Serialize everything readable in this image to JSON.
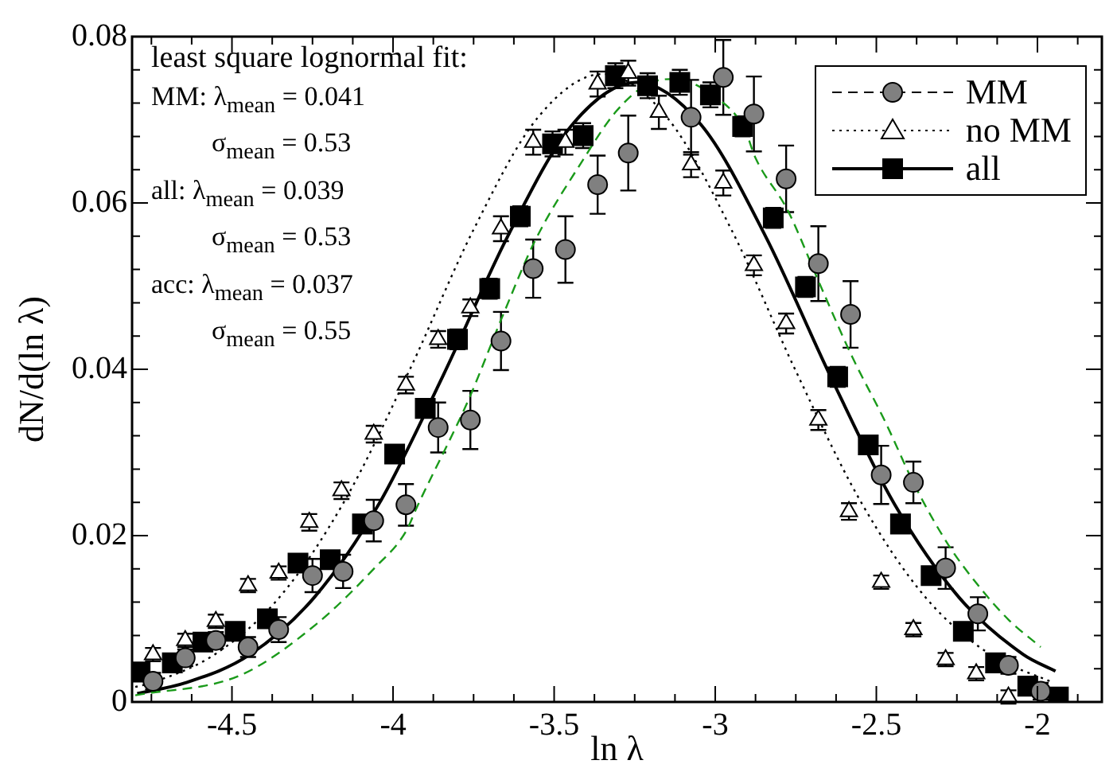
{
  "chart_data": {
    "type": "scatter",
    "xlabel": "ln λ",
    "ylabel": "dN/d(ln λ)",
    "xlim": [
      -4.81,
      -1.8
    ],
    "ylim": [
      0,
      0.08
    ],
    "xticks": [
      {
        "value": -4.75,
        "label": null
      },
      {
        "value": -4.625,
        "label": null
      },
      -4.5,
      {
        "value": -4.375,
        "label": null
      },
      {
        "value": -4.25,
        "label": null
      },
      {
        "value": -4.125,
        "label": null
      },
      -4,
      {
        "value": -3.875,
        "label": null
      },
      {
        "value": -3.75,
        "label": null
      },
      {
        "value": -3.625,
        "label": null
      },
      -3.5,
      {
        "value": -3.375,
        "label": null
      },
      {
        "value": -3.25,
        "label": null
      },
      {
        "value": -3.125,
        "label": null
      },
      -3,
      {
        "value": -2.875,
        "label": null
      },
      {
        "value": -2.75,
        "label": null
      },
      {
        "value": -2.625,
        "label": null
      },
      -2.5,
      {
        "value": -2.375,
        "label": null
      },
      {
        "value": -2.25,
        "label": null
      },
      {
        "value": -2.125,
        "label": null
      },
      -2,
      {
        "value": -1.875,
        "label": null
      }
    ],
    "yticks": [
      0,
      {
        "value": 0.004,
        "label": null
      },
      {
        "value": 0.008,
        "label": null
      },
      {
        "value": 0.012,
        "label": null
      },
      {
        "value": 0.016,
        "label": null
      },
      0.02,
      {
        "value": 0.024,
        "label": null
      },
      {
        "value": 0.028,
        "label": null
      },
      {
        "value": 0.032,
        "label": null
      },
      {
        "value": 0.036,
        "label": null
      },
      0.04,
      {
        "value": 0.044,
        "label": null
      },
      {
        "value": 0.048,
        "label": null
      },
      {
        "value": 0.052,
        "label": null
      },
      {
        "value": 0.056,
        "label": null
      },
      0.06,
      {
        "value": 0.064,
        "label": null
      },
      {
        "value": 0.068,
        "label": null
      },
      {
        "value": 0.072,
        "label": null
      },
      {
        "value": 0.076,
        "label": null
      },
      0.08
    ],
    "legend": "top right",
    "annotations": [
      "least square lognormal fit:",
      "MM: λ$_{mean}$ = 0.041",
      "σ$_{mean}$ = 0.53",
      "all: λ$_{mean}$ = 0.039",
      "σ$_{mean}$ = 0.53",
      "acc: λ$_{mean}$ = 0.037",
      "σ$_{mean}$ = 0.55"
    ],
    "series": [
      {
        "type": "line",
        "color": "#1a9a1a",
        "line_style": "dashed",
        "marker": "none",
        "x": [
          -4.8,
          -4.475,
          -4.24,
          -4.06,
          -3.96,
          -3.925,
          -3.765,
          -3.66,
          -3.56,
          -3.41,
          -3.31,
          -3.21,
          -3.125,
          -3.01,
          -2.91,
          -2.875,
          -2.775,
          -2.675,
          -2.575,
          -2.475,
          -2.375,
          -2.275,
          -2.175,
          -2.09,
          -1.99
        ],
        "values": [
          0.0008,
          0.0032,
          0.0093,
          0.016,
          0.0205,
          0.0235,
          0.0364,
          0.0464,
          0.0554,
          0.0652,
          0.0709,
          0.0743,
          0.0749,
          0.073,
          0.069,
          0.0654,
          0.0591,
          0.0502,
          0.0415,
          0.0339,
          0.0256,
          0.0188,
          0.0136,
          0.0099,
          0.0066
        ]
      },
      {
        "type": "line",
        "color": "#000000",
        "line_style": "dotted",
        "marker": "none",
        "x": [
          -4.8,
          -4.75,
          -4.55,
          -4.35,
          -4.15,
          -3.95,
          -3.75,
          -3.55,
          -3.35,
          -3.15,
          -2.95,
          -2.75,
          -2.55,
          -2.35,
          -2.15,
          -1.95
        ],
        "values": [
          0.0018,
          0.0023,
          0.0058,
          0.0127,
          0.0242,
          0.0398,
          0.0568,
          0.0703,
          0.0755,
          0.0703,
          0.0568,
          0.0398,
          0.0242,
          0.0127,
          0.0058,
          0.0023
        ]
      },
      {
        "type": "line",
        "color": "#000000",
        "line_style": "solid",
        "marker": "none",
        "x": [
          -4.794,
          -4.644,
          -4.444,
          -4.244,
          -4.044,
          -3.844,
          -3.644,
          -3.444,
          -3.244,
          -3.044,
          -2.844,
          -2.644,
          -2.444,
          -2.244,
          -2.044,
          -1.944
        ],
        "values": [
          0.001,
          0.0023,
          0.0057,
          0.0126,
          0.0238,
          0.0393,
          0.056,
          0.0694,
          0.0745,
          0.0694,
          0.056,
          0.0393,
          0.0238,
          0.0126,
          0.0057,
          0.0037
        ]
      },
      {
        "name": "MM",
        "type": "scatter",
        "color": "#808080",
        "marker": "circle",
        "line_style": "dashed",
        "x": [
          -4.745,
          -4.645,
          -4.55,
          -4.45,
          -4.355,
          -4.25,
          -4.155,
          -4.06,
          -3.96,
          -3.86,
          -3.76,
          -3.665,
          -3.565,
          -3.465,
          -3.365,
          -3.27,
          -3.175,
          -3.075,
          -2.975,
          -2.88,
          -2.78,
          -2.68,
          -2.58,
          -2.485,
          -2.385,
          -2.285,
          -2.185,
          -2.09,
          -1.99
        ],
        "values": [
          0.0025,
          0.0053,
          0.0074,
          0.0066,
          0.0087,
          0.0152,
          0.0157,
          0.0218,
          0.0237,
          0.033,
          0.0339,
          0.0434,
          0.0521,
          0.0544,
          0.0622,
          0.066,
          null,
          0.0703,
          0.0751,
          0.0707,
          0.0629,
          0.0527,
          0.0466,
          0.0273,
          0.0264,
          0.0161,
          0.0106,
          0.0044,
          0.0013
        ],
        "errors": [
          0.001,
          0.001,
          0.001,
          0.0012,
          0.0015,
          0.002,
          0.002,
          0.0025,
          0.0025,
          0.003,
          0.0035,
          0.0035,
          0.0035,
          0.004,
          0.0035,
          0.0045,
          null,
          0.0045,
          0.0045,
          0.0045,
          0.004,
          0.0045,
          0.004,
          0.0035,
          0.0025,
          0.0025,
          0.002,
          0.001,
          0.001
        ]
      },
      {
        "name": "no MM",
        "type": "scatter",
        "color": "#ffffff",
        "marker": "triangle",
        "line_style": "dotted",
        "x": [
          -4.745,
          -4.645,
          -4.55,
          -4.45,
          -4.355,
          -4.26,
          -4.16,
          -4.06,
          -3.96,
          -3.86,
          -3.76,
          -3.665,
          -3.565,
          -3.465,
          -3.365,
          -3.27,
          -3.175,
          -3.075,
          -2.975,
          -2.88,
          -2.78,
          -2.68,
          -2.585,
          -2.485,
          -2.385,
          -2.285,
          -2.19,
          -2.09
        ],
        "values": [
          0.0057,
          0.0074,
          0.0097,
          0.014,
          0.0155,
          0.0216,
          0.0254,
          0.0322,
          0.0381,
          0.0436,
          0.0474,
          0.0569,
          0.0673,
          0.0673,
          0.0743,
          0.0756,
          0.0709,
          0.0646,
          0.0624,
          0.0525,
          0.0455,
          0.0339,
          0.0229,
          0.0144,
          0.0087,
          0.0051,
          0.0034,
          0.0006
        ],
        "errors": [
          0.0008,
          0.0008,
          0.0008,
          0.0008,
          0.0008,
          0.001,
          0.001,
          0.001,
          0.001,
          0.001,
          0.001,
          0.0015,
          0.0015,
          0.0015,
          0.0015,
          0.0015,
          0.002,
          0.0015,
          0.0015,
          0.0012,
          0.0012,
          0.0012,
          0.001,
          0.0008,
          0.0008,
          0.0008,
          0.0008,
          0.0008
        ]
      },
      {
        "name": "all",
        "type": "scatter",
        "color": "#000000",
        "marker": "square",
        "line_style": "solid",
        "x": [
          -4.785,
          -4.685,
          -4.59,
          -4.49,
          -4.39,
          -4.295,
          -4.195,
          -4.095,
          -3.995,
          -3.9,
          -3.8,
          -3.7,
          -3.605,
          -3.505,
          -3.41,
          -3.31,
          -3.21,
          -3.11,
          -3.015,
          -2.915,
          -2.82,
          -2.72,
          -2.62,
          -2.525,
          -2.425,
          -2.33,
          -2.23,
          -2.13,
          -2.03,
          -1.935
        ],
        "values": [
          0.0036,
          0.0047,
          0.0072,
          0.0085,
          0.01,
          0.0167,
          0.0171,
          0.0214,
          0.0298,
          0.0353,
          0.0436,
          0.0497,
          0.0584,
          0.0671,
          0.0681,
          0.0753,
          0.0741,
          0.0745,
          0.073,
          0.0692,
          0.0582,
          0.0499,
          0.0391,
          0.0309,
          0.0214,
          0.0152,
          0.0085,
          0.0047,
          0.0019,
          0.0006
        ],
        "errors": [
          null,
          null,
          null,
          null,
          null,
          null,
          null,
          null,
          null,
          null,
          0.0012,
          0.0012,
          0.0012,
          0.0015,
          0.0015,
          0.0015,
          0.0015,
          0.0015,
          0.0015,
          0.0012,
          0.0012,
          0.0012,
          0.0012,
          null,
          null,
          null,
          null,
          null,
          null,
          null
        ]
      }
    ]
  }
}
